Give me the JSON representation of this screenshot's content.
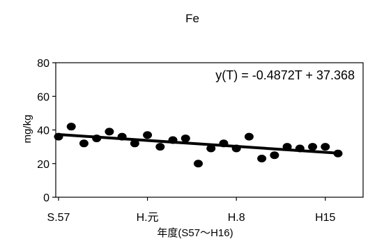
{
  "chart_data": {
    "type": "scatter",
    "title": "Fe",
    "xlabel": "年度(S57～H16)",
    "ylabel": "mg/kg",
    "ylim": [
      0,
      80
    ],
    "xlim": [
      1982,
      2004
    ],
    "yticks": [
      0,
      20,
      40,
      60,
      80
    ],
    "xticks": [
      {
        "value": 1982,
        "label": "S.57"
      },
      {
        "value": 1989,
        "label": "H.元"
      },
      {
        "value": 1996,
        "label": "H.8"
      },
      {
        "value": 2003,
        "label": "H15"
      }
    ],
    "points": [
      {
        "x": 1982,
        "y": 36
      },
      {
        "x": 1983,
        "y": 42
      },
      {
        "x": 1984,
        "y": 32
      },
      {
        "x": 1985,
        "y": 35
      },
      {
        "x": 1986,
        "y": 39
      },
      {
        "x": 1987,
        "y": 36
      },
      {
        "x": 1988,
        "y": 32
      },
      {
        "x": 1989,
        "y": 37
      },
      {
        "x": 1990,
        "y": 30
      },
      {
        "x": 1991,
        "y": 34
      },
      {
        "x": 1992,
        "y": 35
      },
      {
        "x": 1993,
        "y": 20
      },
      {
        "x": 1994,
        "y": 29
      },
      {
        "x": 1995,
        "y": 32
      },
      {
        "x": 1996,
        "y": 29
      },
      {
        "x": 1997,
        "y": 36
      },
      {
        "x": 1998,
        "y": 23
      },
      {
        "x": 1999,
        "y": 25
      },
      {
        "x": 2000,
        "y": 30
      },
      {
        "x": 2001,
        "y": 29
      },
      {
        "x": 2002,
        "y": 30
      },
      {
        "x": 2003,
        "y": 30
      },
      {
        "x": 2004,
        "y": 26
      }
    ],
    "trendline": {
      "label": "y(T) = -0.4872T + 37.368",
      "slope": -0.4872,
      "intercept": 37.368,
      "start": [
        1982,
        37.3
      ],
      "end": [
        2004,
        26.2
      ]
    },
    "grid": false,
    "legend": "none",
    "marker_color": "#000000",
    "line_color": "#000000"
  }
}
